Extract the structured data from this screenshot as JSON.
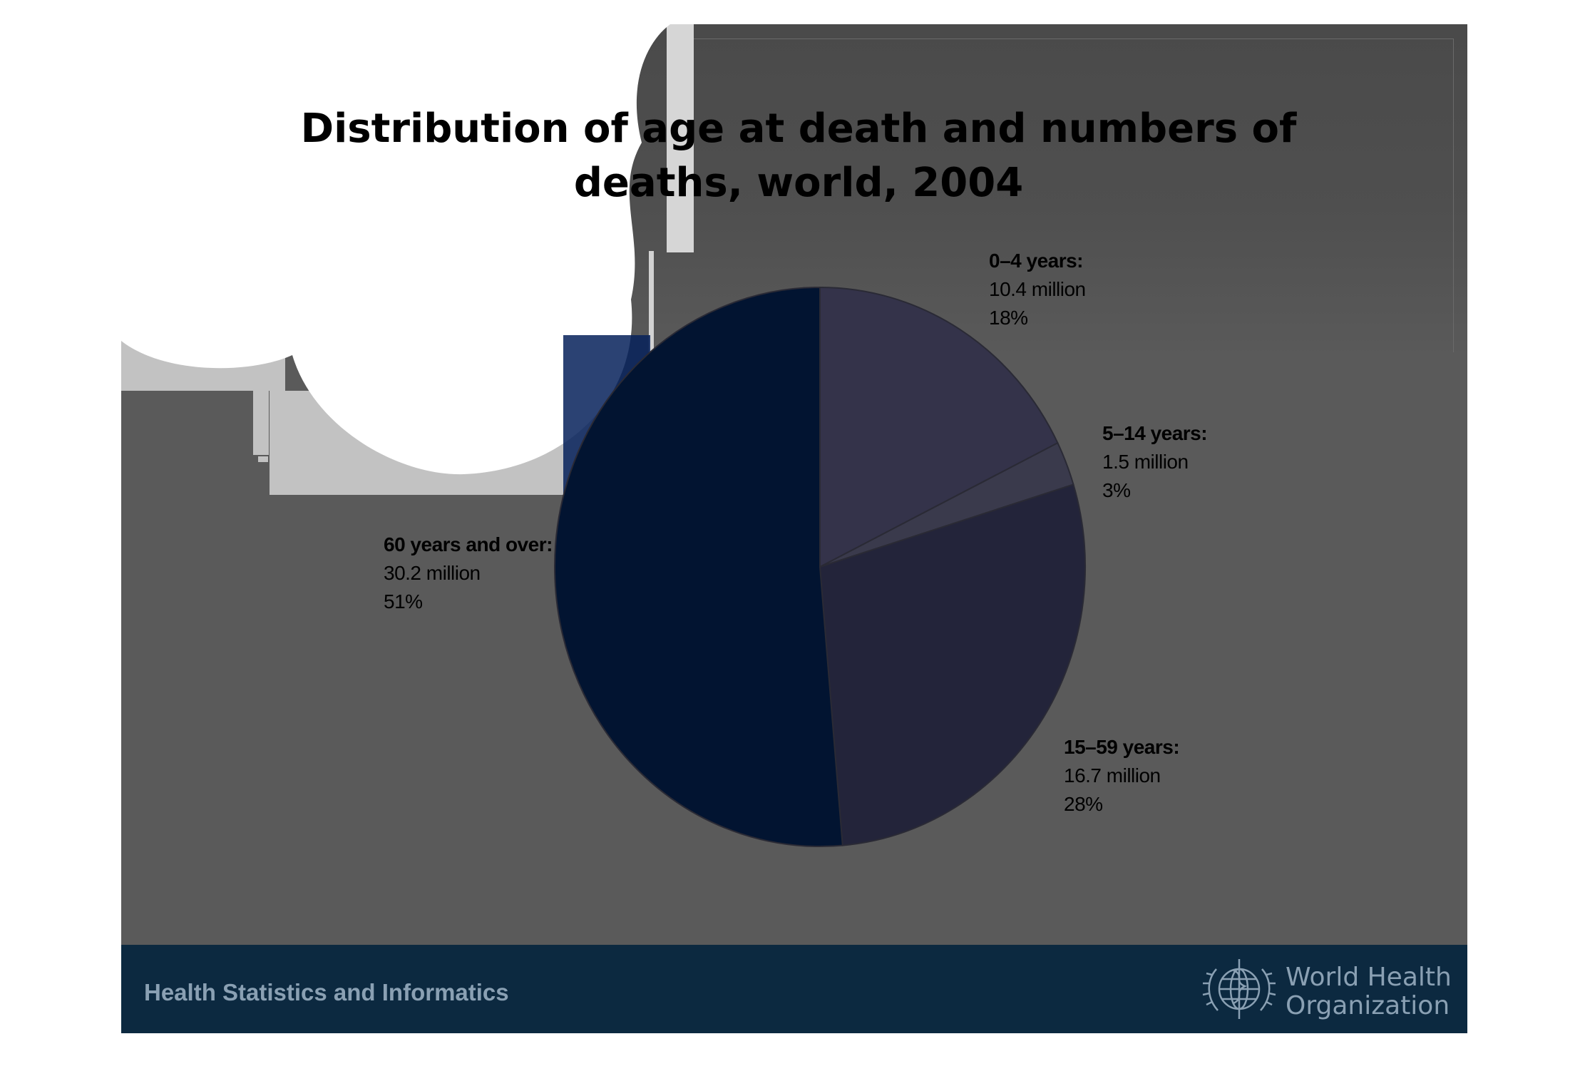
{
  "chart_data": {
    "type": "pie",
    "title_lines": [
      "Distribution of age at death and numbers of",
      "deaths, world, 2004"
    ],
    "slices": [
      {
        "label": "0–4 years:",
        "value_text": "10.4 million",
        "pct_text": "18%",
        "value": 10.4,
        "color": "#34334a"
      },
      {
        "label": "5–14 years:",
        "value_text": "1.5 million",
        "pct_text": "3%",
        "value": 1.5,
        "color": "#3a3a4c"
      },
      {
        "label": "15–59 years:",
        "value_text": "16.7 million",
        "pct_text": "28%",
        "value": 16.7,
        "color": "#23243a"
      },
      {
        "label": "60 years and over:",
        "value_text": "30.2 million",
        "pct_text": "51%",
        "value": 30.2,
        "color": "#021431"
      }
    ],
    "start_angle": "12 o'clock, clockwise",
    "legend": "none (labels beside slices)"
  },
  "footer": {
    "left_text": "Health Statistics and Informatics",
    "org_line1": "World Health",
    "org_line2": "Organization"
  },
  "colors": {
    "slide_bg": "#5a5a5a",
    "footer_bg": "#0c2940",
    "footer_text": "#8aa0b3",
    "slice_edge": "#2a2a35"
  },
  "icons": {
    "footer_logo": "who-emblem-icon"
  }
}
